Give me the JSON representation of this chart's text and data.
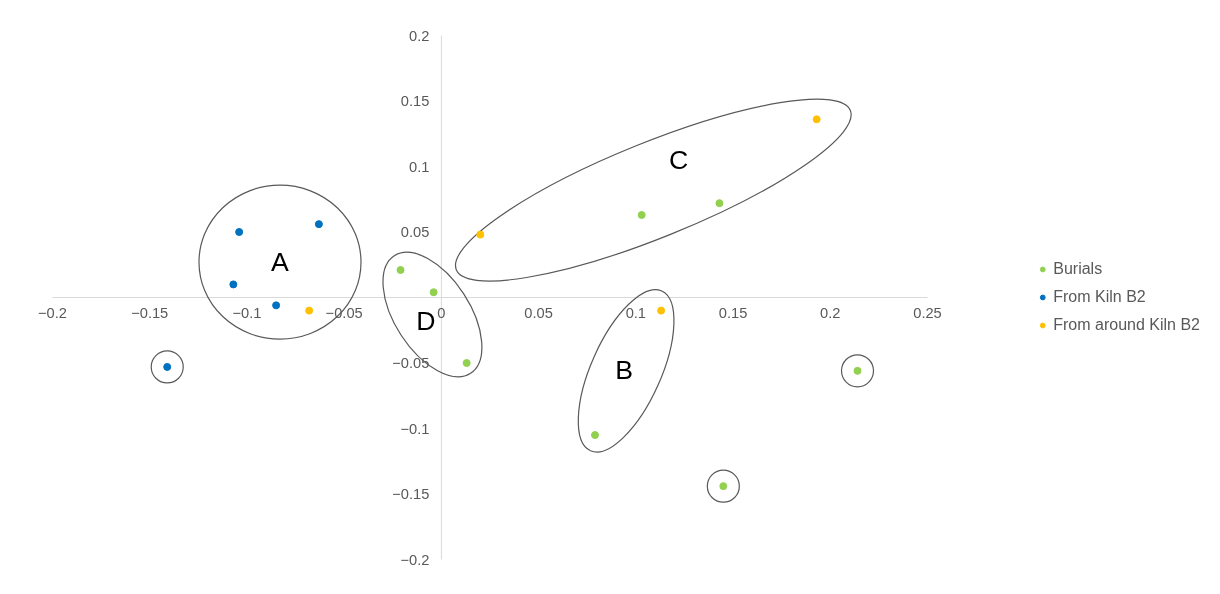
{
  "chart_data": {
    "type": "scatter",
    "marker": "circle",
    "grid": false,
    "legend": "right",
    "xlim": [
      -0.2,
      0.25
    ],
    "ylim": [
      -0.2,
      0.2
    ],
    "xticks": [
      -0.2,
      -0.15,
      -0.1,
      -0.05,
      0,
      0.05,
      0.1,
      0.15,
      0.2,
      0.25
    ],
    "yticks": [
      -0.2,
      -0.15,
      -0.1,
      -0.05,
      0.05,
      0.1,
      0.15,
      0.2
    ],
    "series": [
      {
        "name": "Burials",
        "color": "#92d050",
        "x": [
          -0.021,
          -0.004,
          0.013,
          0.103,
          0.143,
          0.079,
          0.145,
          0.214
        ],
        "values": [
          0.021,
          0.004,
          -0.05,
          0.063,
          0.072,
          -0.105,
          -0.144,
          -0.056
        ]
      },
      {
        "name": "From Kiln B2",
        "color": "#0070c0",
        "x": [
          -0.104,
          -0.063,
          -0.107,
          -0.085,
          -0.141
        ],
        "values": [
          0.05,
          0.056,
          0.01,
          -0.006,
          -0.053
        ]
      },
      {
        "name": "From around Kiln B2",
        "color": "#ffc000",
        "x": [
          -0.068,
          0.02,
          0.113,
          0.193
        ],
        "values": [
          -0.01,
          0.048,
          -0.01,
          0.136
        ]
      }
    ],
    "annotations": [
      "A",
      "C",
      "D",
      "B"
    ]
  }
}
